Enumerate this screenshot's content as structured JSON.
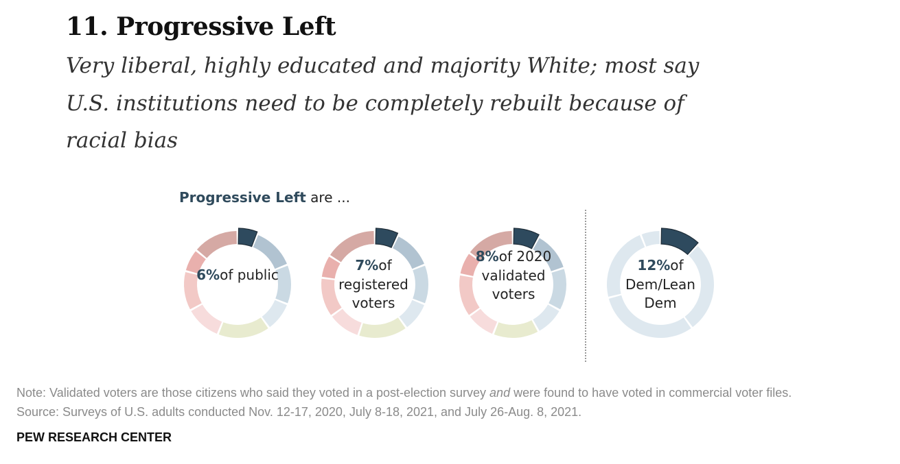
{
  "title": "11. Progressive Left",
  "subtitle": "Very liberal, highly educated and majority White; most say U.S. institutions need to be completely rebuilt because of racial bias",
  "chart_heading": {
    "lead": "Progressive Left",
    "rest": " are ..."
  },
  "chart_data": {
    "type": "pie",
    "variant": "donut",
    "grid": false,
    "highlight_color": "#2e4a5e",
    "segment_colors": [
      "#2e4a5e",
      "#b1c3d1",
      "#cad9e3",
      "#dee8ef",
      "#e8ebcf",
      "#f7dcdc",
      "#f2c9c6",
      "#e9b0ad",
      "#d5a9a4"
    ],
    "series": [
      {
        "name": "public",
        "label_pct": "6%",
        "label_rest": "of public",
        "values": [
          6,
          13,
          12,
          9,
          16,
          11,
          12,
          7,
          14
        ]
      },
      {
        "name": "registered voters",
        "label_pct": "7%",
        "label_rest": "of registered voters",
        "values": [
          7,
          12,
          12,
          9,
          15,
          10,
          12,
          7,
          16
        ]
      },
      {
        "name": "2020 validated voters",
        "label_pct": "8%",
        "label_rest": "of 2020 validated voters",
        "values": [
          8,
          12,
          13,
          9,
          14,
          9,
          13,
          7,
          15
        ]
      },
      {
        "name": "Dem/Lean Dem",
        "label_pct": "12%",
        "label_rest": "of Dem/Lean Dem",
        "colors": [
          "#2e4a5e",
          "#dee8ef",
          "#dee8ef",
          "#dee8ef",
          "#dee8ef"
        ],
        "values": [
          12,
          28,
          31,
          23,
          6
        ]
      }
    ]
  },
  "note": {
    "before": "Note: Validated voters are those citizens who said they voted in a post-election survey ",
    "emph": "and",
    "after": " were found to have voted in commercial voter files."
  },
  "source": "Source: Surveys of U.S. adults conducted Nov. 12-17, 2020, July 8-18, 2021, and July 26-Aug. 8, 2021.",
  "org": "PEW RESEARCH CENTER"
}
